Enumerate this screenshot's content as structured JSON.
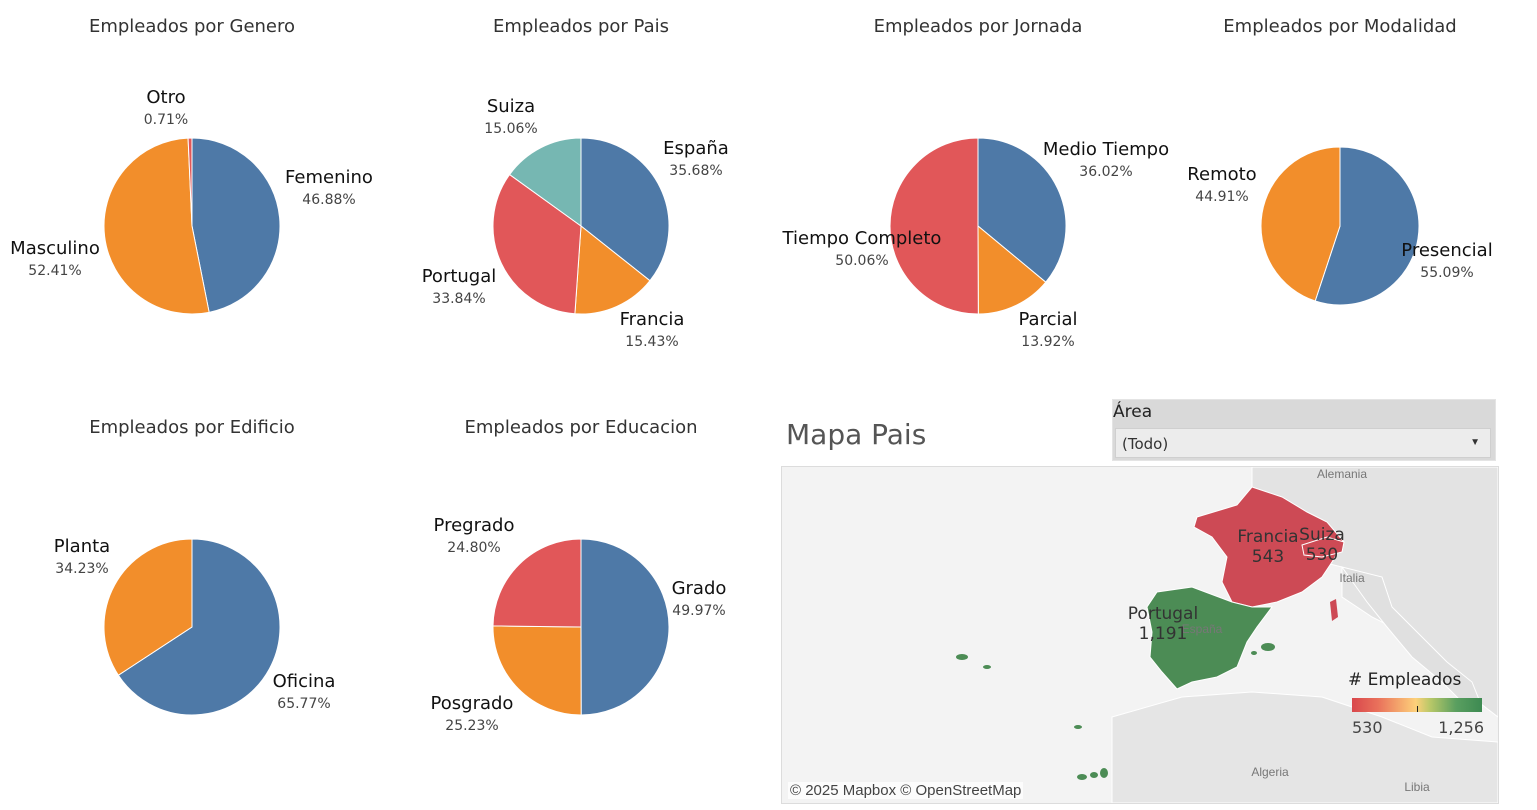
{
  "colors": {
    "blue": "#4e79a7",
    "orange": "#f28e2b",
    "red": "#e15759",
    "teal": "#76b7b2",
    "green": "#4c8c55",
    "france_red": "#cd4a55"
  },
  "chart_data": [
    {
      "type": "pie",
      "title": "Empleados por Genero",
      "slices": [
        {
          "label": "Femenino",
          "percent_label": "46.88%",
          "value": 46.88,
          "color": "#4e79a7"
        },
        {
          "label": "Masculino",
          "percent_label": "52.41%",
          "value": 52.41,
          "color": "#f28e2b"
        },
        {
          "label": "Otro",
          "percent_label": "0.71%",
          "value": 0.71,
          "color": "#e15759"
        }
      ]
    },
    {
      "type": "pie",
      "title": "Empleados por Pais",
      "slices": [
        {
          "label": "España",
          "percent_label": "35.68%",
          "value": 35.68,
          "color": "#4e79a7"
        },
        {
          "label": "Francia",
          "percent_label": "15.43%",
          "value": 15.43,
          "color": "#f28e2b"
        },
        {
          "label": "Portugal",
          "percent_label": "33.84%",
          "value": 33.84,
          "color": "#e15759"
        },
        {
          "label": "Suiza",
          "percent_label": "15.06%",
          "value": 15.06,
          "color": "#76b7b2"
        }
      ]
    },
    {
      "type": "pie",
      "title": "Empleados por Jornada",
      "slices": [
        {
          "label": "Medio Tiempo",
          "percent_label": "36.02%",
          "value": 36.02,
          "color": "#4e79a7"
        },
        {
          "label": "Parcial",
          "percent_label": "13.92%",
          "value": 13.92,
          "color": "#f28e2b"
        },
        {
          "label": "Tiempo Completo",
          "percent_label": "50.06%",
          "value": 50.06,
          "color": "#e15759"
        }
      ]
    },
    {
      "type": "pie",
      "title": "Empleados por Modalidad",
      "slices": [
        {
          "label": "Presencial",
          "percent_label": "55.09%",
          "value": 55.09,
          "color": "#4e79a7"
        },
        {
          "label": "Remoto",
          "percent_label": "44.91%",
          "value": 44.91,
          "color": "#f28e2b"
        }
      ]
    },
    {
      "type": "pie",
      "title": "Empleados por Edificio",
      "slices": [
        {
          "label": "Oficina",
          "percent_label": "65.77%",
          "value": 65.77,
          "color": "#4e79a7"
        },
        {
          "label": "Planta",
          "percent_label": "34.23%",
          "value": 34.23,
          "color": "#f28e2b"
        }
      ]
    },
    {
      "type": "pie",
      "title": "Empleados por Educacion",
      "slices": [
        {
          "label": "Grado",
          "percent_label": "49.97%",
          "value": 49.97,
          "color": "#4e79a7"
        },
        {
          "label": "Posgrado",
          "percent_label": "25.23%",
          "value": 25.23,
          "color": "#f28e2b"
        },
        {
          "label": "Pregrado",
          "percent_label": "24.80%",
          "value": 24.8,
          "color": "#e15759"
        }
      ]
    }
  ],
  "map": {
    "title": "Mapa Pais",
    "filter": {
      "label": "Área",
      "value": "(Todo)"
    },
    "countries": [
      {
        "name": "Francia",
        "value": "543"
      },
      {
        "name": "Suiza",
        "value": "530"
      },
      {
        "name": "Portugal",
        "value": "1,191"
      }
    ],
    "geo_labels": [
      "Alemania",
      "Italia",
      "España",
      "Algeria",
      "Libia"
    ],
    "legend": {
      "title": "# Empleados",
      "min": "530",
      "max": "1,256"
    },
    "attribution": "© 2025 Mapbox © OpenStreetMap"
  }
}
